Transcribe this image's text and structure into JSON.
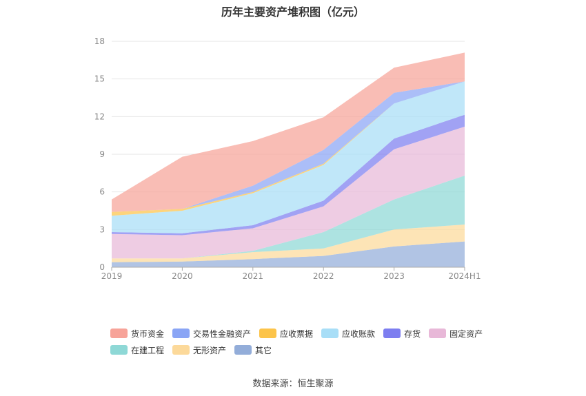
{
  "chart_data": {
    "type": "area",
    "stacked": true,
    "title": "历年主要资产堆积图（亿元）",
    "categories": [
      "2019",
      "2020",
      "2021",
      "2022",
      "2023",
      "2024H1"
    ],
    "ylim": [
      0,
      18
    ],
    "yticks": [
      "0",
      "3",
      "6",
      "9",
      "12",
      "15",
      "18"
    ],
    "grid": true,
    "legend_position": "bottom",
    "source": "数据来源：恒生聚源",
    "series": [
      {
        "name": "其它",
        "color": "#93add9",
        "values": [
          0.4,
          0.45,
          0.65,
          0.9,
          1.65,
          2.05
        ]
      },
      {
        "name": "无形资产",
        "color": "#fcd99a",
        "values": [
          0.3,
          0.25,
          0.55,
          0.6,
          1.35,
          1.35
        ]
      },
      {
        "name": "在建工程",
        "color": "#8ed8d6",
        "values": [
          0.0,
          0.0,
          0.1,
          1.3,
          2.4,
          3.9
        ]
      },
      {
        "name": "固定资产",
        "color": "#e8b8d8",
        "values": [
          1.95,
          1.85,
          1.8,
          2.05,
          4.0,
          3.9
        ]
      },
      {
        "name": "存货",
        "color": "#7d7ef0",
        "values": [
          0.15,
          0.15,
          0.25,
          0.45,
          0.85,
          0.95
        ]
      },
      {
        "name": "应收账款",
        "color": "#a8def7",
        "values": [
          1.3,
          1.8,
          2.55,
          2.85,
          2.8,
          2.65
        ]
      },
      {
        "name": "应收票据",
        "color": "#fcc44a",
        "values": [
          0.3,
          0.15,
          0.1,
          0.1,
          0.0,
          0.0
        ]
      },
      {
        "name": "交易性金融资产",
        "color": "#8aa5f5",
        "values": [
          0.0,
          0.0,
          0.5,
          1.1,
          0.85,
          0.0
        ]
      },
      {
        "name": "货币资金",
        "color": "#f7a399",
        "values": [
          1.0,
          4.15,
          3.55,
          2.6,
          2.0,
          2.3
        ]
      }
    ]
  },
  "legend": {
    "rows": [
      [
        {
          "label": "货币资金",
          "color": "#f7a399"
        },
        {
          "label": "交易性金融资产",
          "color": "#8aa5f5"
        },
        {
          "label": "应收票据",
          "color": "#fcc44a"
        },
        {
          "label": "应收账款",
          "color": "#a8def7"
        },
        {
          "label": "存货",
          "color": "#7d7ef0"
        },
        {
          "label": "固定资产",
          "color": "#e8b8d8"
        }
      ],
      [
        {
          "label": "在建工程",
          "color": "#8ed8d6"
        },
        {
          "label": "无形资产",
          "color": "#fcd99a"
        },
        {
          "label": "其它",
          "color": "#93add9"
        }
      ]
    ]
  }
}
